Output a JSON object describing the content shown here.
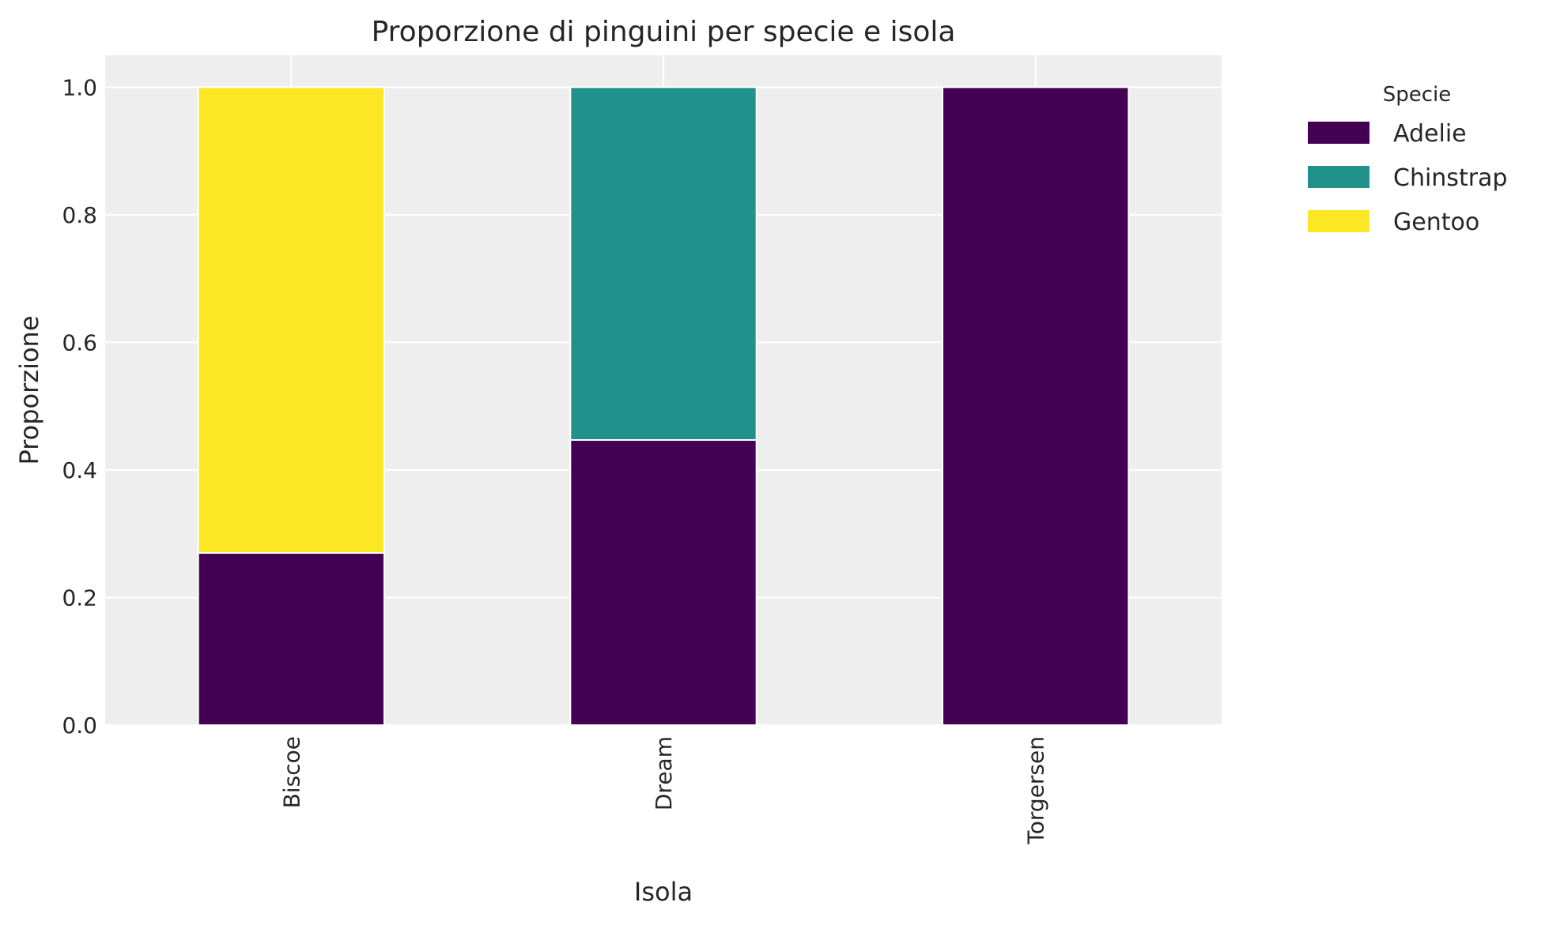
{
  "chart_data": {
    "type": "bar",
    "stacked": true,
    "title": "Proporzione di pinguini per specie e isola",
    "xlabel": "Isola",
    "ylabel": "Proporzione",
    "categories": [
      "Biscoe",
      "Dream",
      "Torgersen"
    ],
    "series": [
      {
        "name": "Adelie",
        "color": "#440154",
        "values": [
          0.27,
          0.447,
          1.0
        ]
      },
      {
        "name": "Chinstrap",
        "color": "#21918c",
        "values": [
          0.0,
          0.553,
          0.0
        ]
      },
      {
        "name": "Gentoo",
        "color": "#fde725",
        "values": [
          0.73,
          0.0,
          0.0
        ]
      }
    ],
    "ylim": [
      0,
      1.05
    ],
    "yticks": [
      "0.0",
      "0.2",
      "0.4",
      "0.6",
      "0.8",
      "1.0"
    ],
    "grid": true,
    "legend": {
      "title": "Specie",
      "placement": "outside-top-right"
    },
    "colors": {
      "plot_background": "#eeeeee",
      "grid": "#ffffff"
    }
  }
}
